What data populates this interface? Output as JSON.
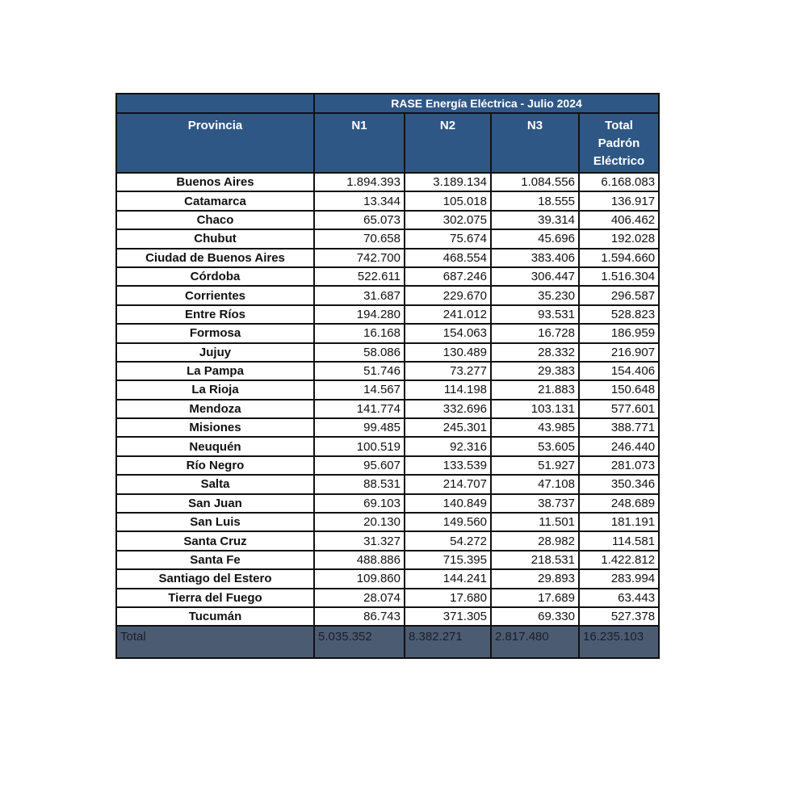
{
  "table": {
    "title": "RASE Energía Eléctrica - Julio 2024",
    "headers": [
      "Provincia",
      "N1",
      "N2",
      "N3",
      "Total Padrón Eléctrico"
    ],
    "rows": [
      [
        "Buenos Aires",
        "1.894.393",
        "3.189.134",
        "1.084.556",
        "6.168.083"
      ],
      [
        "Catamarca",
        "13.344",
        "105.018",
        "18.555",
        "136.917"
      ],
      [
        "Chaco",
        "65.073",
        "302.075",
        "39.314",
        "406.462"
      ],
      [
        "Chubut",
        "70.658",
        "75.674",
        "45.696",
        "192.028"
      ],
      [
        "Ciudad de Buenos Aires",
        "742.700",
        "468.554",
        "383.406",
        "1.594.660"
      ],
      [
        "Córdoba",
        "522.611",
        "687.246",
        "306.447",
        "1.516.304"
      ],
      [
        "Corrientes",
        "31.687",
        "229.670",
        "35.230",
        "296.587"
      ],
      [
        "Entre Ríos",
        "194.280",
        "241.012",
        "93.531",
        "528.823"
      ],
      [
        "Formosa",
        "16.168",
        "154.063",
        "16.728",
        "186.959"
      ],
      [
        "Jujuy",
        "58.086",
        "130.489",
        "28.332",
        "216.907"
      ],
      [
        "La Pampa",
        "51.746",
        "73.277",
        "29.383",
        "154.406"
      ],
      [
        "La Rioja",
        "14.567",
        "114.198",
        "21.883",
        "150.648"
      ],
      [
        "Mendoza",
        "141.774",
        "332.696",
        "103.131",
        "577.601"
      ],
      [
        "Misiones",
        "99.485",
        "245.301",
        "43.985",
        "388.771"
      ],
      [
        "Neuquén",
        "100.519",
        "92.316",
        "53.605",
        "246.440"
      ],
      [
        "Río Negro",
        "95.607",
        "133.539",
        "51.927",
        "281.073"
      ],
      [
        "Salta",
        "88.531",
        "214.707",
        "47.108",
        "350.346"
      ],
      [
        "San Juan",
        "69.103",
        "140.849",
        "38.737",
        "248.689"
      ],
      [
        "San Luis",
        "20.130",
        "149.560",
        "11.501",
        "181.191"
      ],
      [
        "Santa Cruz",
        "31.327",
        "54.272",
        "28.982",
        "114.581"
      ],
      [
        "Santa Fe",
        "488.886",
        "715.395",
        "218.531",
        "1.422.812"
      ],
      [
        "Santiago del Estero",
        "109.860",
        "144.241",
        "29.893",
        "283.994"
      ],
      [
        "Tierra del Fuego",
        "28.074",
        "17.680",
        "17.689",
        "63.443"
      ],
      [
        "Tucumán",
        "86.743",
        "371.305",
        "69.330",
        "527.378"
      ]
    ],
    "total": [
      "Total",
      "5.035.352",
      "8.382.271",
      "2.817.480",
      "16.235.103"
    ]
  }
}
